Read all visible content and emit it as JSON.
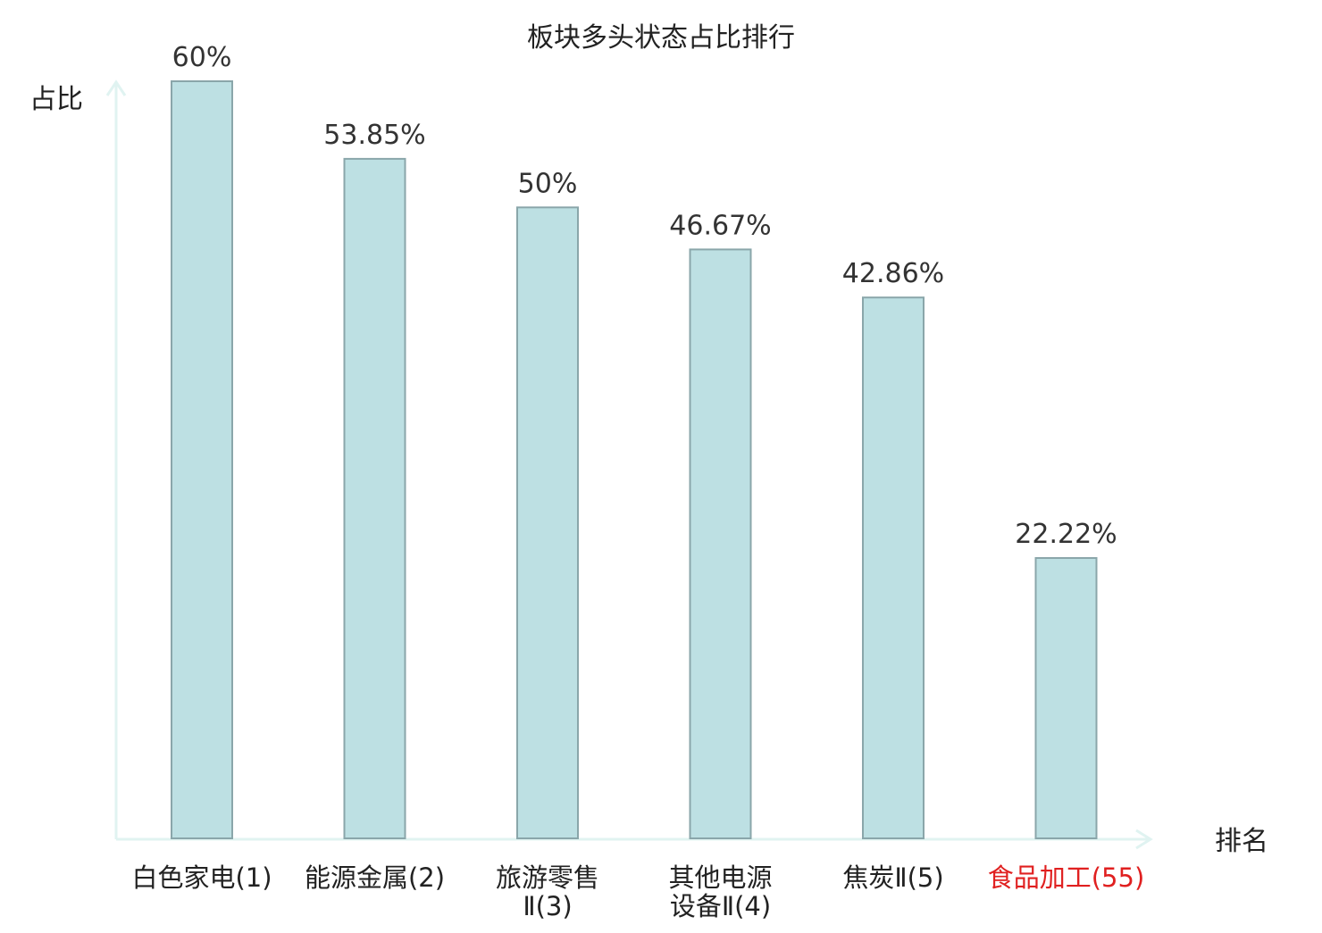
{
  "chart_data": {
    "type": "bar",
    "title": "板块多头状态占比排行",
    "ylabel": "占比",
    "xlabel": "排名",
    "ylim": [
      0,
      60
    ],
    "grid": false,
    "categories": [
      [
        "白色家电(1)"
      ],
      [
        "能源金属(2)"
      ],
      [
        "旅游零售",
        "Ⅱ(3)"
      ],
      [
        "其他电源",
        "设备Ⅱ(4)"
      ],
      [
        "焦炭Ⅱ(5)"
      ],
      [
        "食品加工(55)"
      ]
    ],
    "values": [
      60,
      53.85,
      50,
      46.67,
      42.86,
      22.22
    ],
    "value_labels": [
      "60%",
      "53.85%",
      "50%",
      "46.67%",
      "42.86%",
      "22.22%"
    ],
    "highlight_index": 5,
    "colors": {
      "bar_fill": "#bde0e3",
      "bar_stroke": "#8aa6aa",
      "axis": "#e0f3f1",
      "text": "#222222",
      "highlight_text": "#e02020"
    }
  }
}
